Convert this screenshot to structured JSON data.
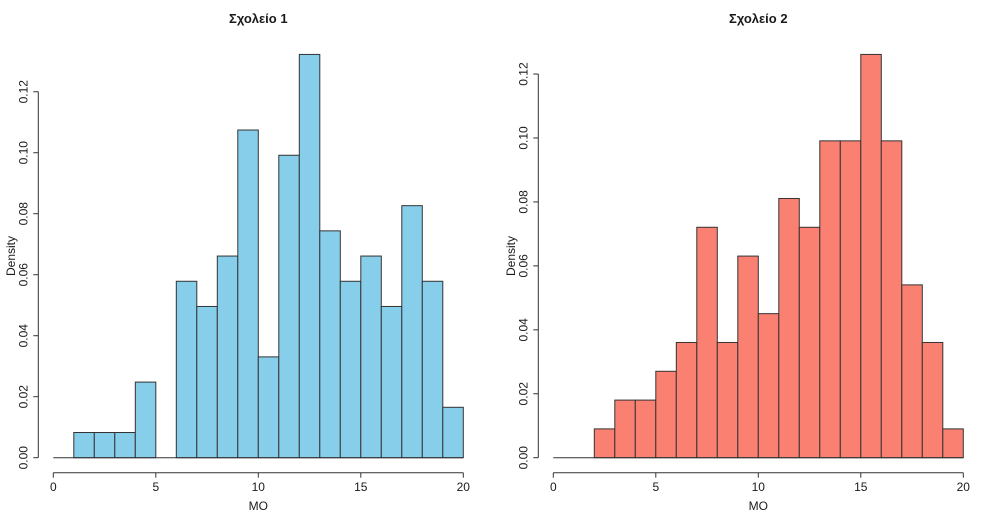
{
  "page": {
    "background": "#ffffff"
  },
  "chart_data": [
    {
      "type": "bar",
      "subtype": "histogram",
      "title": "Σχολείο 1",
      "xlabel": "MO",
      "ylabel": "Density",
      "bar_fill": "#87CEEB",
      "bar_stroke": "#333333",
      "axis_color": "#333333",
      "grid": false,
      "legend": null,
      "xlim": [
        0,
        20
      ],
      "ylim": [
        0,
        0.13223
      ],
      "breaks": [
        0,
        1,
        2,
        3,
        4,
        5,
        6,
        7,
        8,
        9,
        10,
        11,
        12,
        13,
        14,
        15,
        16,
        17,
        18,
        19,
        20
      ],
      "densities": [
        0,
        0.00826,
        0.00826,
        0.00826,
        0.02479,
        0,
        0.05785,
        0.04959,
        0.06612,
        0.10744,
        0.03306,
        0.09917,
        0.13223,
        0.07438,
        0.05785,
        0.06612,
        0.04959,
        0.08264,
        0.05785,
        0.01653
      ],
      "x_ticks": {
        "values": [
          0,
          5,
          10,
          15,
          20
        ],
        "labels": [
          "0",
          "5",
          "10",
          "15",
          "20"
        ]
      },
      "y_ticks": {
        "values": [
          0,
          0.02,
          0.04,
          0.06,
          0.08,
          0.1,
          0.12
        ],
        "labels": [
          "0.00",
          "0.02",
          "0.04",
          "0.06",
          "0.08",
          "0.10",
          "0.12"
        ]
      }
    },
    {
      "type": "bar",
      "subtype": "histogram",
      "title": "Σχολείο 2",
      "xlabel": "MO",
      "ylabel": "Density",
      "bar_fill": "#FA8072",
      "bar_stroke": "#333333",
      "axis_color": "#333333",
      "grid": false,
      "legend": null,
      "xlim": [
        0,
        20
      ],
      "ylim": [
        0,
        0.12613
      ],
      "breaks": [
        0,
        1,
        2,
        3,
        4,
        5,
        6,
        7,
        8,
        9,
        10,
        11,
        12,
        13,
        14,
        15,
        16,
        17,
        18,
        19,
        20
      ],
      "densities": [
        0,
        0,
        0.00901,
        0.01802,
        0.01802,
        0.02703,
        0.03604,
        0.07207,
        0.03604,
        0.06306,
        0.04505,
        0.08108,
        0.07207,
        0.0991,
        0.0991,
        0.12613,
        0.0991,
        0.05405,
        0.03604,
        0.00901
      ],
      "x_ticks": {
        "values": [
          0,
          5,
          10,
          15,
          20
        ],
        "labels": [
          "0",
          "5",
          "10",
          "15",
          "20"
        ]
      },
      "y_ticks": {
        "values": [
          0,
          0.02,
          0.04,
          0.06,
          0.08,
          0.1,
          0.12
        ],
        "labels": [
          "0.00",
          "0.02",
          "0.04",
          "0.06",
          "0.08",
          "0.10",
          "0.12"
        ]
      }
    }
  ]
}
